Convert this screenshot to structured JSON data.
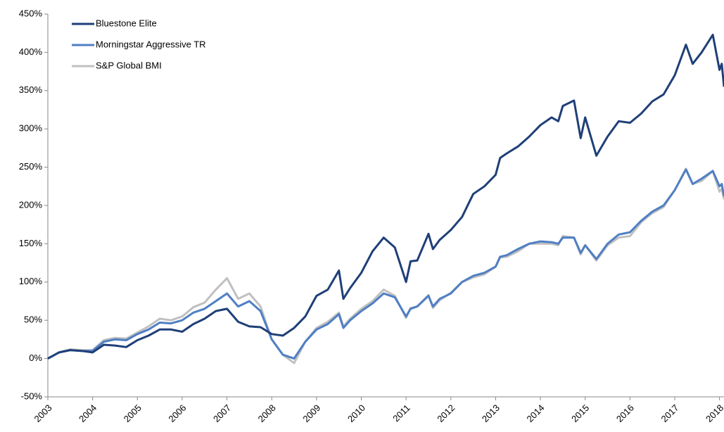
{
  "chart_data": {
    "type": "line",
    "x": [
      2003,
      2003.25,
      2003.5,
      2003.75,
      2004,
      2004.25,
      2004.5,
      2004.75,
      2005,
      2005.25,
      2005.5,
      2005.75,
      2006,
      2006.25,
      2006.5,
      2006.75,
      2007,
      2007.25,
      2007.5,
      2007.75,
      2008,
      2008.25,
      2008.5,
      2008.75,
      2009,
      2009.25,
      2009.5,
      2009.6,
      2009.75,
      2010,
      2010.25,
      2010.5,
      2010.75,
      2011,
      2011.1,
      2011.25,
      2011.5,
      2011.6,
      2011.75,
      2012,
      2012.25,
      2012.5,
      2012.75,
      2013,
      2013.1,
      2013.25,
      2013.5,
      2013.75,
      2014,
      2014.25,
      2014.4,
      2014.5,
      2014.75,
      2014.9,
      2015,
      2015.25,
      2015.5,
      2015.75,
      2016,
      2016.25,
      2016.5,
      2016.75,
      2017,
      2017.25,
      2017.4,
      2017.6,
      2017.85,
      2018,
      2018.05,
      2018.1
    ],
    "series": [
      {
        "name": "Bluestone Elite",
        "color": "#1f3f78",
        "values": [
          0,
          8,
          11,
          10,
          8,
          18,
          17,
          15,
          24,
          30,
          38,
          38,
          35,
          45,
          52,
          62,
          65,
          48,
          42,
          41,
          32,
          30,
          40,
          55,
          82,
          90,
          115,
          78,
          92,
          112,
          140,
          158,
          145,
          100,
          127,
          128,
          163,
          143,
          155,
          168,
          185,
          215,
          225,
          240,
          262,
          268,
          277,
          290,
          305,
          315,
          310,
          330,
          337,
          288,
          315,
          265,
          290,
          310,
          308,
          320,
          336,
          345,
          370,
          410,
          385,
          400,
          423,
          377,
          385,
          355
        ]
      },
      {
        "name": "Morningstar Aggressive TR",
        "color": "#4f7fc4",
        "values": [
          0,
          8,
          11,
          10,
          10,
          22,
          25,
          24,
          32,
          38,
          47,
          46,
          50,
          60,
          65,
          75,
          85,
          68,
          75,
          62,
          25,
          5,
          0,
          22,
          38,
          45,
          58,
          40,
          50,
          62,
          72,
          85,
          80,
          55,
          65,
          68,
          82,
          68,
          78,
          85,
          100,
          108,
          112,
          120,
          133,
          135,
          143,
          150,
          153,
          152,
          150,
          158,
          158,
          138,
          148,
          130,
          150,
          162,
          165,
          180,
          192,
          200,
          220,
          247,
          228,
          235,
          245,
          225,
          228,
          212
        ]
      },
      {
        "name": "S&P Global BMI",
        "color": "#c0c0c0",
        "values": [
          0,
          8,
          12,
          11,
          11,
          24,
          27,
          26,
          34,
          42,
          52,
          50,
          55,
          67,
          73,
          90,
          105,
          78,
          85,
          68,
          25,
          5,
          -6,
          22,
          40,
          48,
          60,
          42,
          52,
          65,
          75,
          90,
          82,
          53,
          66,
          68,
          83,
          66,
          76,
          86,
          100,
          106,
          110,
          120,
          132,
          133,
          140,
          150,
          150,
          150,
          148,
          160,
          158,
          136,
          148,
          128,
          148,
          158,
          160,
          178,
          190,
          198,
          220,
          248,
          228,
          232,
          245,
          218,
          222,
          208
        ]
      }
    ],
    "xlim": [
      2003,
      2018.1
    ],
    "xticks": [
      2003,
      2004,
      2005,
      2006,
      2007,
      2008,
      2009,
      2010,
      2011,
      2012,
      2013,
      2014,
      2015,
      2016,
      2017,
      2018
    ],
    "ylim": [
      -50,
      450
    ],
    "yticks": [
      {
        "value": -50,
        "label": "-50%"
      },
      {
        "value": 0,
        "label": "0%"
      },
      {
        "value": 50,
        "label": "50%"
      },
      {
        "value": 100,
        "label": "100%"
      },
      {
        "value": 150,
        "label": "150%"
      },
      {
        "value": 200,
        "label": "200%"
      },
      {
        "value": 250,
        "label": "250%"
      },
      {
        "value": 300,
        "label": "300%"
      },
      {
        "value": 350,
        "label": "350%"
      },
      {
        "value": 400,
        "label": "400%"
      },
      {
        "value": 450,
        "label": "450%"
      }
    ],
    "legend": "top-left"
  }
}
